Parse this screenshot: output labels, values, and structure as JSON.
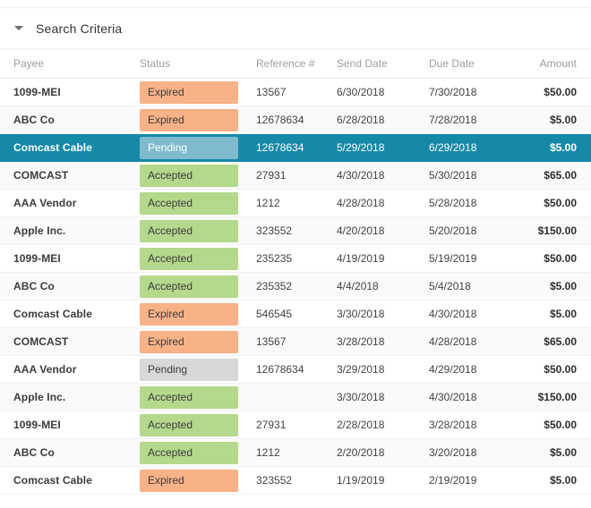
{
  "search_criteria": {
    "label": "Search Criteria",
    "collapse_icon": "caret-down-icon"
  },
  "colors": {
    "expired_badge": "#f8b287",
    "accepted_badge": "#b4d88c",
    "pending_badge": "#d8d8d8",
    "selected_row": "#1689a9",
    "selected_pending_badge": "#7ebbcd"
  },
  "table": {
    "columns": [
      "Payee",
      "Status",
      "Reference #",
      "Send Date",
      "Due Date",
      "Amount"
    ],
    "rows": [
      {
        "payee": "1099-MEI",
        "status": "Expired",
        "reference": "13567",
        "send_date": "6/30/2018",
        "due_date": "7/30/2018",
        "amount": "$50.00",
        "selected": false
      },
      {
        "payee": "ABC Co",
        "status": "Expired",
        "reference": "12678634",
        "send_date": "6/28/2018",
        "due_date": "7/28/2018",
        "amount": "$5.00",
        "selected": false
      },
      {
        "payee": "Comcast Cable",
        "status": "Pending",
        "reference": "12678634",
        "send_date": "5/29/2018",
        "due_date": "6/29/2018",
        "amount": "$5.00",
        "selected": true
      },
      {
        "payee": "COMCAST",
        "status": "Accepted",
        "reference": "27931",
        "send_date": "4/30/2018",
        "due_date": "5/30/2018",
        "amount": "$65.00",
        "selected": false
      },
      {
        "payee": "AAA Vendor",
        "status": "Accepted",
        "reference": "1212",
        "send_date": "4/28/2018",
        "due_date": "5/28/2018",
        "amount": "$50.00",
        "selected": false
      },
      {
        "payee": "Apple Inc.",
        "status": "Accepted",
        "reference": "323552",
        "send_date": "4/20/2018",
        "due_date": "5/20/2018",
        "amount": "$150.00",
        "selected": false
      },
      {
        "payee": "1099-MEI",
        "status": "Accepted",
        "reference": "235235",
        "send_date": "4/19/2019",
        "due_date": "5/19/2019",
        "amount": "$50.00",
        "selected": false
      },
      {
        "payee": "ABC Co",
        "status": "Accepted",
        "reference": "235352",
        "send_date": "4/4/2018",
        "due_date": "5/4/2018",
        "amount": "$5.00",
        "selected": false
      },
      {
        "payee": "Comcast Cable",
        "status": "Expired",
        "reference": "546545",
        "send_date": "3/30/2018",
        "due_date": "4/30/2018",
        "amount": "$5.00",
        "selected": false
      },
      {
        "payee": "COMCAST",
        "status": "Expired",
        "reference": "13567",
        "send_date": "3/28/2018",
        "due_date": "4/28/2018",
        "amount": "$65.00",
        "selected": false
      },
      {
        "payee": "AAA Vendor",
        "status": "Pending",
        "reference": "12678634",
        "send_date": "3/29/2018",
        "due_date": "4/29/2018",
        "amount": "$50.00",
        "selected": false
      },
      {
        "payee": "Apple Inc.",
        "status": "Accepted",
        "reference": "",
        "send_date": "3/30/2018",
        "due_date": "4/30/2018",
        "amount": "$150.00",
        "selected": false
      },
      {
        "payee": "1099-MEI",
        "status": "Accepted",
        "reference": "27931",
        "send_date": "2/28/2018",
        "due_date": "3/28/2018",
        "amount": "$50.00",
        "selected": false
      },
      {
        "payee": "ABC Co",
        "status": "Accepted",
        "reference": "1212",
        "send_date": "2/20/2018",
        "due_date": "3/20/2018",
        "amount": "$5.00",
        "selected": false
      },
      {
        "payee": "Comcast Cable",
        "status": "Expired",
        "reference": "323552",
        "send_date": "1/19/2019",
        "due_date": "2/19/2019",
        "amount": "$5.00",
        "selected": false
      }
    ]
  }
}
